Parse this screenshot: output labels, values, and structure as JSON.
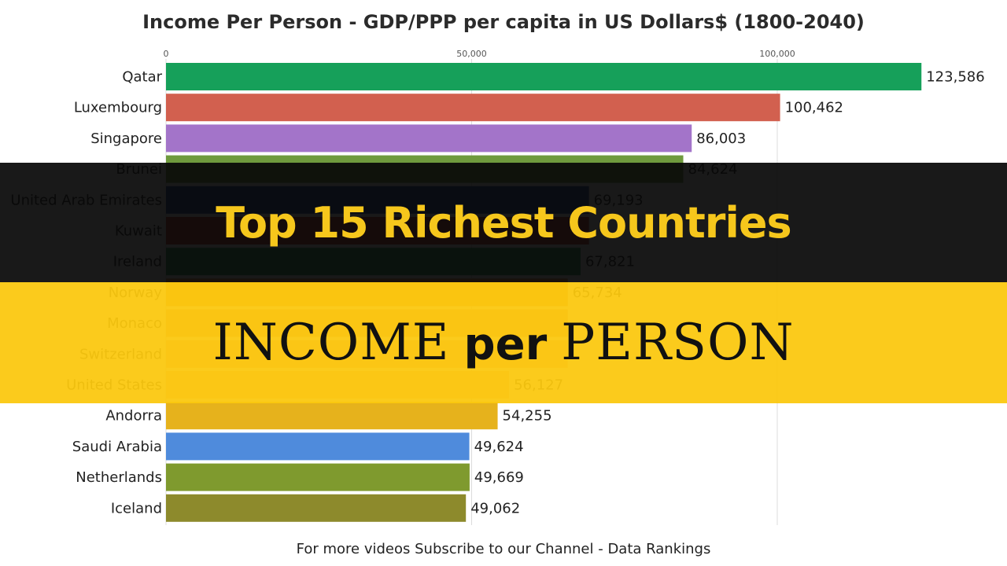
{
  "chart_data": {
    "type": "bar",
    "orientation": "horizontal",
    "title": "Income Per Person - GDP/PPP per capita in US Dollars$ (1800-2040)",
    "categories": [
      "Qatar",
      "Luxembourg",
      "Singapore",
      "Brunei",
      "United Arab Emirates",
      "Kuwait",
      "Ireland",
      "Norway",
      "Monaco",
      "Switzerland",
      "United States",
      "Andorra",
      "Saudi Arabia",
      "Netherlands",
      "Iceland"
    ],
    "values": [
      123586,
      100462,
      86003,
      84624,
      69193,
      null,
      67821,
      65734,
      null,
      null,
      56127,
      54255,
      49624,
      49669,
      49062
    ],
    "value_labels": [
      "123,586",
      "100,462",
      "86,003",
      "84,624",
      "69,193",
      "",
      "67,821",
      "65,734",
      "",
      "",
      "56,127",
      "54,255",
      "49,624",
      "49,669",
      "49,062"
    ],
    "bar_colors": [
      "#16a05a",
      "#d2604f",
      "#a374c9",
      "#6f9a3d",
      "#1f4f9e",
      "#c0392b",
      "#2a9a5e",
      "#e8903a",
      "#e89a6e",
      "#f0a080",
      "#f4b08a",
      "#e6b21c",
      "#4f8bdc",
      "#7f9a2e",
      "#8d8a2c"
    ],
    "ticks": [
      "0",
      "50,000",
      "100,000"
    ],
    "tick_values": [
      0,
      50000,
      100000
    ],
    "xlim": [
      0,
      126000
    ],
    "grid": true,
    "footer": "For more videos Subscribe to our Channel - Data Rankings"
  },
  "overlay": {
    "banner_top": "Top 15 Richest Countries",
    "banner_bottom_left": "INCOME",
    "banner_bottom_mid": "per",
    "banner_bottom_right": "PERSON",
    "top_color": "#f6c71c",
    "bottom_color": "#fbc80e"
  }
}
